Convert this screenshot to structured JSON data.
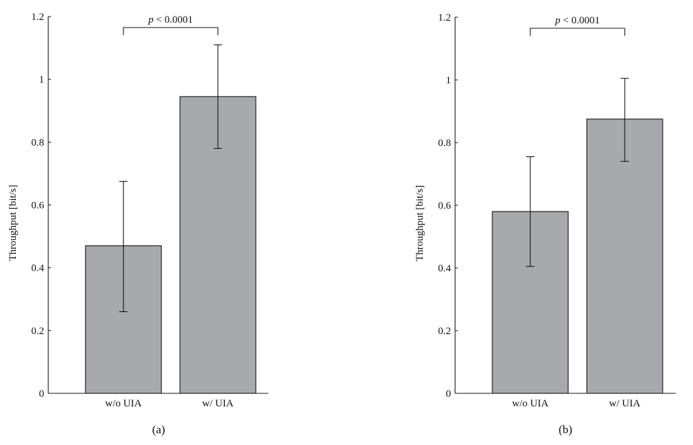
{
  "colors": {
    "bar_fill": "#a8a9ad",
    "bar_stroke": "#111111",
    "axis": "#111111"
  },
  "chart_data": [
    {
      "type": "bar",
      "panel_label": "(a)",
      "categories": [
        "w/o UIA",
        "w/ UIA"
      ],
      "values": [
        0.47,
        0.945
      ],
      "error_low": [
        0.26,
        0.78
      ],
      "error_high": [
        0.675,
        1.11
      ],
      "ylabel": "Throughput [bit/s]",
      "ylim": [
        0,
        1.2
      ],
      "yticks": [
        0,
        0.2,
        0.4,
        0.6,
        0.8,
        1,
        1.2
      ],
      "ytick_labels": [
        "0",
        "0.2",
        "0.4",
        "0.6",
        "0.8",
        "1",
        "1.2"
      ],
      "grid": false,
      "annotation": {
        "italic": "p",
        "text": " < 0.0001",
        "between": [
          0,
          1
        ]
      }
    },
    {
      "type": "bar",
      "panel_label": "(b)",
      "categories": [
        "w/o UIA",
        "w/ UIA"
      ],
      "values": [
        0.58,
        0.875
      ],
      "error_low": [
        0.405,
        0.74
      ],
      "error_high": [
        0.755,
        1.005
      ],
      "ylabel": "Throughput [bit/s]",
      "ylim": [
        0,
        1.2
      ],
      "yticks": [
        0,
        0.2,
        0.4,
        0.6,
        0.8,
        1,
        1.2
      ],
      "ytick_labels": [
        "0",
        "0.2",
        "0.4",
        "0.6",
        "0.8",
        "1",
        "1.2"
      ],
      "grid": false,
      "annotation": {
        "italic": "p",
        "text": " < 0.0001",
        "between": [
          0,
          1
        ]
      }
    }
  ]
}
